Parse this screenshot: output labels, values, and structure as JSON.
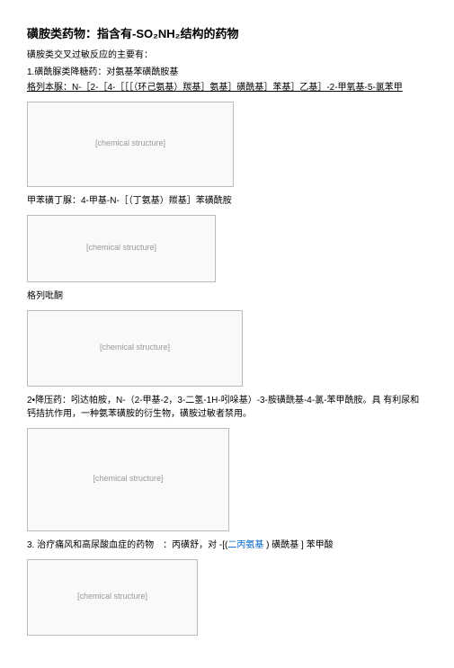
{
  "title": "磺胺类药物：指含有-SO₂NH₂结构的药物",
  "subtitle": "磺胺类交叉过敏反应的主要有：",
  "section1": {
    "heading": "1.磺酰脲类降糖药：对氨基苯磺酰胺基",
    "drug_a_line": "格列本脲：N-［2-［4-［［［（环己氨基）羰基］氨基］磺酰基］苯基］乙基］-2-甲氧基-5-氯苯甲",
    "caption_a": "甲苯磺丁脲：4-甲基-N-［（丁氨基）羰基］苯磺酰胺",
    "caption_b": "格列吡酮"
  },
  "section2": {
    "heading": "2•降压药：吲达帕胺，N-（2-甲基-2，3-二氢-1H-吲哚基）-3-胺磺酰基-4-氯-苯甲酰胺。具 有利尿和钙拮抗作用，一种氨苯磺胺的衍生物，磺胺过敏者禁用。"
  },
  "section3": {
    "prefix": "3. 治疗痛风和高尿酸血症的药物　：丙磺舒，对  -[(",
    "blue": "二丙氨基",
    "suffix": " ) 磺酰基 ] 苯甲酸"
  },
  "placeholders": {
    "img": "[chemical structure]"
  }
}
